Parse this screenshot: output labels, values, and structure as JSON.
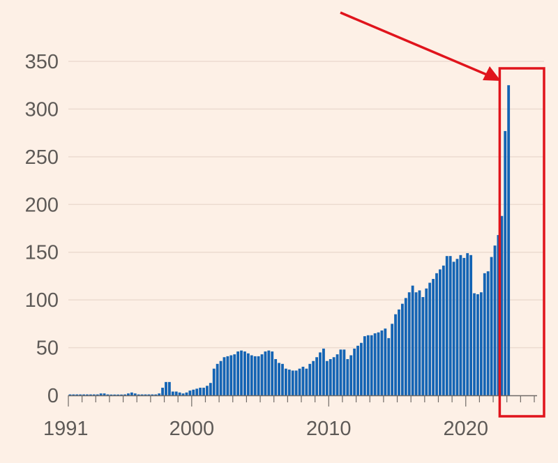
{
  "chart_data": {
    "type": "bar",
    "title": "",
    "xlabel": "",
    "ylabel": "",
    "ylim": [
      0,
      350
    ],
    "xlim": [
      1991,
      2025
    ],
    "grid": true,
    "y_ticks": [
      0,
      50,
      100,
      150,
      200,
      250,
      300,
      350
    ],
    "x_ticks": [
      {
        "value": 1991,
        "label": "1991"
      },
      {
        "value": 2000,
        "label": "2000"
      },
      {
        "value": 2010,
        "label": "2010"
      },
      {
        "value": 2020,
        "label": "2020"
      }
    ],
    "bar_start": 1991,
    "bars_per_year": 4,
    "values": [
      1,
      1,
      1,
      1,
      1,
      1,
      1,
      1,
      1,
      2,
      2,
      1,
      0,
      0,
      0,
      0,
      1,
      2,
      3,
      2,
      1,
      1,
      1,
      1,
      1,
      1,
      2,
      8,
      14,
      14,
      4,
      4,
      3,
      2,
      3,
      5,
      6,
      7,
      8,
      8,
      10,
      13,
      28,
      33,
      36,
      40,
      41,
      42,
      43,
      46,
      47,
      46,
      44,
      42,
      41,
      41,
      43,
      46,
      47,
      46,
      38,
      34,
      33,
      28,
      27,
      26,
      26,
      28,
      30,
      28,
      33,
      36,
      40,
      45,
      49,
      36,
      38,
      40,
      43,
      48,
      48,
      38,
      42,
      49,
      52,
      55,
      62,
      63,
      63,
      65,
      66,
      68,
      70,
      60,
      75,
      85,
      90,
      96,
      102,
      108,
      115,
      108,
      110,
      103,
      112,
      118,
      122,
      128,
      132,
      136,
      146,
      146,
      140,
      143,
      147,
      144,
      149,
      147,
      107,
      106,
      108,
      128,
      130,
      145,
      157,
      168,
      188,
      277,
      325
    ],
    "highlight_box": {
      "x_from": 2024.0,
      "x_to": 2025.0
    }
  },
  "colors": {
    "background": "#fdf0e6",
    "bar": "#1464b4",
    "grid": "#ecdbd0",
    "axis_text": "#5e5a57",
    "annotation": "#e0141c"
  }
}
